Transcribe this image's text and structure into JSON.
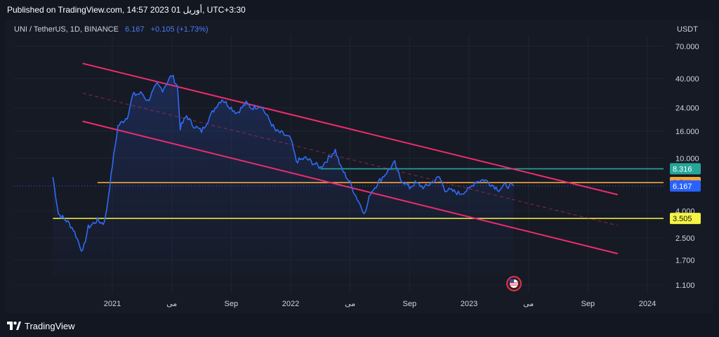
{
  "header": {
    "published": "Published on TradingView.com, 14:57 2023 أوريل 01, UTC+3:30"
  },
  "legend": {
    "symbol": "UNI / TetherUS, 1D, BINANCE",
    "price": "6.167",
    "change": "+0.105 (+1.73%)"
  },
  "axis": {
    "currency": "USDT"
  },
  "footer": {
    "brand": "TradingView"
  },
  "colors": {
    "price_line": "#2f6bf5",
    "channel": "#f02c6c",
    "orange_level": "#f7a733",
    "yellow_level": "#f5f542",
    "green_level": "#26a69a",
    "current_price": "#2962ff"
  },
  "chart_data": {
    "type": "line",
    "title": "UNI / TetherUS, 1D, BINANCE",
    "y_scale": "log",
    "x_ticks": [
      "2021",
      "می",
      "Sep",
      "2022",
      "می",
      "Sep",
      "2023",
      "می",
      "Sep",
      "2024"
    ],
    "y_ticks": [
      "70.000",
      "40.000",
      "24.000",
      "16.000",
      "10.000",
      "4.000",
      "2.500",
      "1.700",
      "1.100"
    ],
    "price_labels": [
      {
        "label": "8.316",
        "value": 8.316,
        "color": "#26a69a",
        "text_color": "#ffffff"
      },
      {
        "label": "6.541",
        "value": 6.541,
        "color": "#f7a733",
        "text_color": "#131722"
      },
      {
        "label": "6.167",
        "value": 6.167,
        "color": "#2962ff",
        "text_color": "#ffffff"
      },
      {
        "label": "3.505",
        "value": 3.505,
        "color": "#f5f542",
        "text_color": "#131722"
      }
    ],
    "horizontal_levels": [
      {
        "value": 6.541,
        "color": "#f7a733",
        "from": "2020-12"
      },
      {
        "value": 3.505,
        "color": "#f5f542",
        "from": "2020-09"
      },
      {
        "value": 8.316,
        "color": "#26a69a",
        "from": "2022-03"
      }
    ],
    "channel_lines": [
      {
        "name": "upper",
        "from": [
          "2020-11",
          52
        ],
        "to": [
          "2023-11",
          5.3
        ],
        "style": "solid"
      },
      {
        "name": "lower",
        "from": [
          "2020-11",
          19
        ],
        "to": [
          "2023-11",
          1.9
        ],
        "style": "solid"
      },
      {
        "name": "middle",
        "from": [
          "2020-11",
          31
        ],
        "to": [
          "2023-11",
          3.1
        ],
        "style": "dashed"
      }
    ],
    "series": [
      {
        "values": [
          [
            "2020-09",
            7.2
          ],
          [
            "2020-09",
            3.8
          ],
          [
            "2020-10",
            3.3
          ],
          [
            "2020-10",
            2.9
          ],
          [
            "2020-11",
            1.95
          ],
          [
            "2020-11",
            3.0
          ],
          [
            "2020-12",
            3.4
          ],
          [
            "2020-12",
            3.2
          ],
          [
            "2020-12",
            3.7
          ],
          [
            "2021-01",
            8.8
          ],
          [
            "2021-01",
            17.5
          ],
          [
            "2021-02",
            20.5
          ],
          [
            "2021-02",
            30.0
          ],
          [
            "2021-03",
            31.0
          ],
          [
            "2021-03",
            27.0
          ],
          [
            "2021-04",
            36.0
          ],
          [
            "2021-04",
            33.0
          ],
          [
            "2021-05",
            42.5
          ],
          [
            "2021-05",
            35.0
          ],
          [
            "2021-05",
            17.0
          ],
          [
            "2021-06",
            21.0
          ],
          [
            "2021-06",
            18.0
          ],
          [
            "2021-07",
            16.0
          ],
          [
            "2021-08",
            25.0
          ],
          [
            "2021-08",
            28.0
          ],
          [
            "2021-09",
            24.0
          ],
          [
            "2021-09",
            22.0
          ],
          [
            "2021-10",
            26.0
          ],
          [
            "2021-10",
            24.0
          ],
          [
            "2021-11",
            25.0
          ],
          [
            "2021-12",
            16.0
          ],
          [
            "2021-12",
            15.5
          ],
          [
            "2022-01",
            14.0
          ],
          [
            "2022-01",
            9.5
          ],
          [
            "2022-02",
            10.0
          ],
          [
            "2022-03",
            8.5
          ],
          [
            "2022-04",
            11.5
          ],
          [
            "2022-04",
            8.5
          ],
          [
            "2022-05",
            6.5
          ],
          [
            "2022-05",
            5.2
          ],
          [
            "2022-06",
            3.8
          ],
          [
            "2022-06",
            5.5
          ],
          [
            "2022-07",
            6.8
          ],
          [
            "2022-08",
            9.2
          ],
          [
            "2022-08",
            7.0
          ],
          [
            "2022-09",
            6.0
          ],
          [
            "2022-09",
            6.5
          ],
          [
            "2022-10",
            6.0
          ],
          [
            "2022-11",
            7.2
          ],
          [
            "2022-11",
            5.8
          ],
          [
            "2022-12",
            5.6
          ],
          [
            "2022-12",
            5.4
          ],
          [
            "2023-01",
            5.8
          ],
          [
            "2023-01",
            6.6
          ],
          [
            "2023-02",
            6.9
          ],
          [
            "2023-02",
            6.5
          ],
          [
            "2023-03",
            5.8
          ],
          [
            "2023-03",
            6.2
          ],
          [
            "2023-04",
            6.167
          ]
        ]
      }
    ]
  }
}
